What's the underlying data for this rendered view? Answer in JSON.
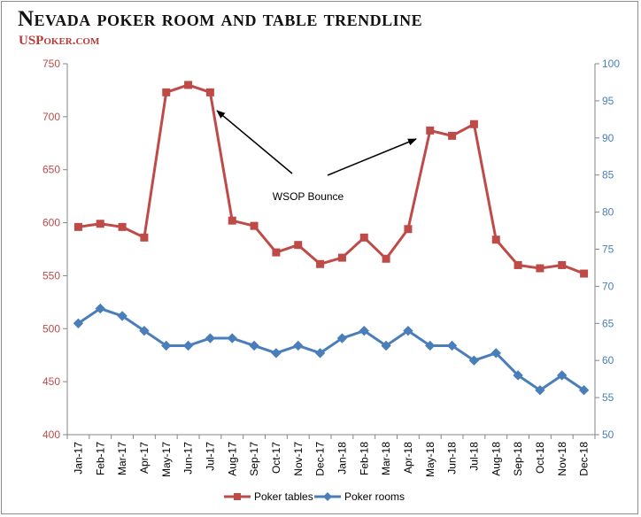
{
  "title": "Nevada poker room and table trendline",
  "brand": "USPoker.com",
  "chart_data": {
    "type": "line",
    "categories": [
      "Jan-17",
      "Feb-17",
      "Mar-17",
      "Apr-17",
      "May-17",
      "Jun-17",
      "Jul-17",
      "Aug-17",
      "Sep-17",
      "Oct-17",
      "Nov-17",
      "Dec-17",
      "Jan-18",
      "Feb-18",
      "Mar-18",
      "Apr-18",
      "May-18",
      "Jun-18",
      "Jul-18",
      "Aug-18",
      "Sep-18",
      "Oct-18",
      "Nov-18",
      "Dec-18"
    ],
    "series": [
      {
        "name": "Poker tables",
        "axis": "left",
        "color": "#be4b48",
        "values": [
          596,
          599,
          596,
          586,
          723,
          730,
          723,
          602,
          597,
          572,
          579,
          561,
          567,
          586,
          566,
          594,
          687,
          682,
          693,
          584,
          560,
          557,
          560,
          552
        ]
      },
      {
        "name": "Poker rooms",
        "axis": "right",
        "color": "#4a7ebb",
        "values": [
          65,
          67,
          66,
          64,
          62,
          62,
          63,
          63,
          62,
          61,
          62,
          61,
          63,
          64,
          62,
          64,
          62,
          62,
          60,
          61,
          58,
          56,
          58,
          56
        ]
      }
    ],
    "y_left": {
      "min": 400,
      "max": 750,
      "ticks": [
        400,
        450,
        500,
        550,
        600,
        650,
        700,
        750
      ],
      "color": "#be4b48"
    },
    "y_right": {
      "min": 50,
      "max": 100,
      "ticks": [
        50,
        55,
        60,
        65,
        70,
        75,
        80,
        85,
        90,
        95,
        100
      ],
      "color": "#4a7ebb"
    },
    "grid": false,
    "legend_position": "bottom",
    "annotations": [
      {
        "text": "WSOP Bounce",
        "arrow_targets": [
          "Aug-17",
          "May-18"
        ]
      }
    ]
  }
}
